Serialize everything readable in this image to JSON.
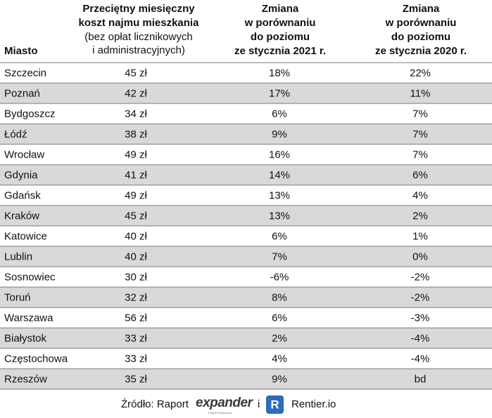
{
  "table": {
    "header": {
      "city": "Miasto",
      "cost": [
        "Przeciętny miesięczny",
        "koszt najmu mieszkania",
        "(bez opłat licznikowych",
        "i administracyjnych)"
      ],
      "change2021": [
        "Zmiana",
        "w porównaniu",
        "do poziomu",
        "ze stycznia 2021 r."
      ],
      "change2020": [
        "Zmiana",
        "w porównaniu",
        "do poziomu",
        "ze stycznia 2020 r."
      ]
    },
    "rows": [
      [
        "Szczecin",
        "45 zł",
        "18%",
        "22%"
      ],
      [
        "Poznań",
        "42 zł",
        "17%",
        "11%"
      ],
      [
        "Bydgoszcz",
        "34 zł",
        "6%",
        "7%"
      ],
      [
        "Łódź",
        "38 zł",
        "9%",
        "7%"
      ],
      [
        "Wrocław",
        "49 zł",
        "16%",
        "7%"
      ],
      [
        "Gdynia",
        "41 zł",
        "14%",
        "6%"
      ],
      [
        "Gdańsk",
        "49 zł",
        "13%",
        "4%"
      ],
      [
        "Kraków",
        "45 zł",
        "13%",
        "2%"
      ],
      [
        "Katowice",
        "40 zł",
        "6%",
        "1%"
      ],
      [
        "Lublin",
        "40 zł",
        "7%",
        "0%"
      ],
      [
        "Sosnowiec",
        "30 zł",
        "-6%",
        "-2%"
      ],
      [
        "Toruń",
        "32 zł",
        "8%",
        "-2%"
      ],
      [
        "Warszawa",
        "56 zł",
        "6%",
        "-3%"
      ],
      [
        "Białystok",
        "33 zł",
        "2%",
        "-4%"
      ],
      [
        "Częstochowa",
        "33 zł",
        "4%",
        "-4%"
      ],
      [
        "Rzeszów",
        "35 zł",
        "9%",
        "bd"
      ]
    ]
  },
  "footer": {
    "source": "Źródło: Raport",
    "logo": "expander",
    "logo_sub": "Ekspert Finansowy",
    "conj": "i",
    "icon_letter": "R",
    "brand": "Rentier.io"
  }
}
